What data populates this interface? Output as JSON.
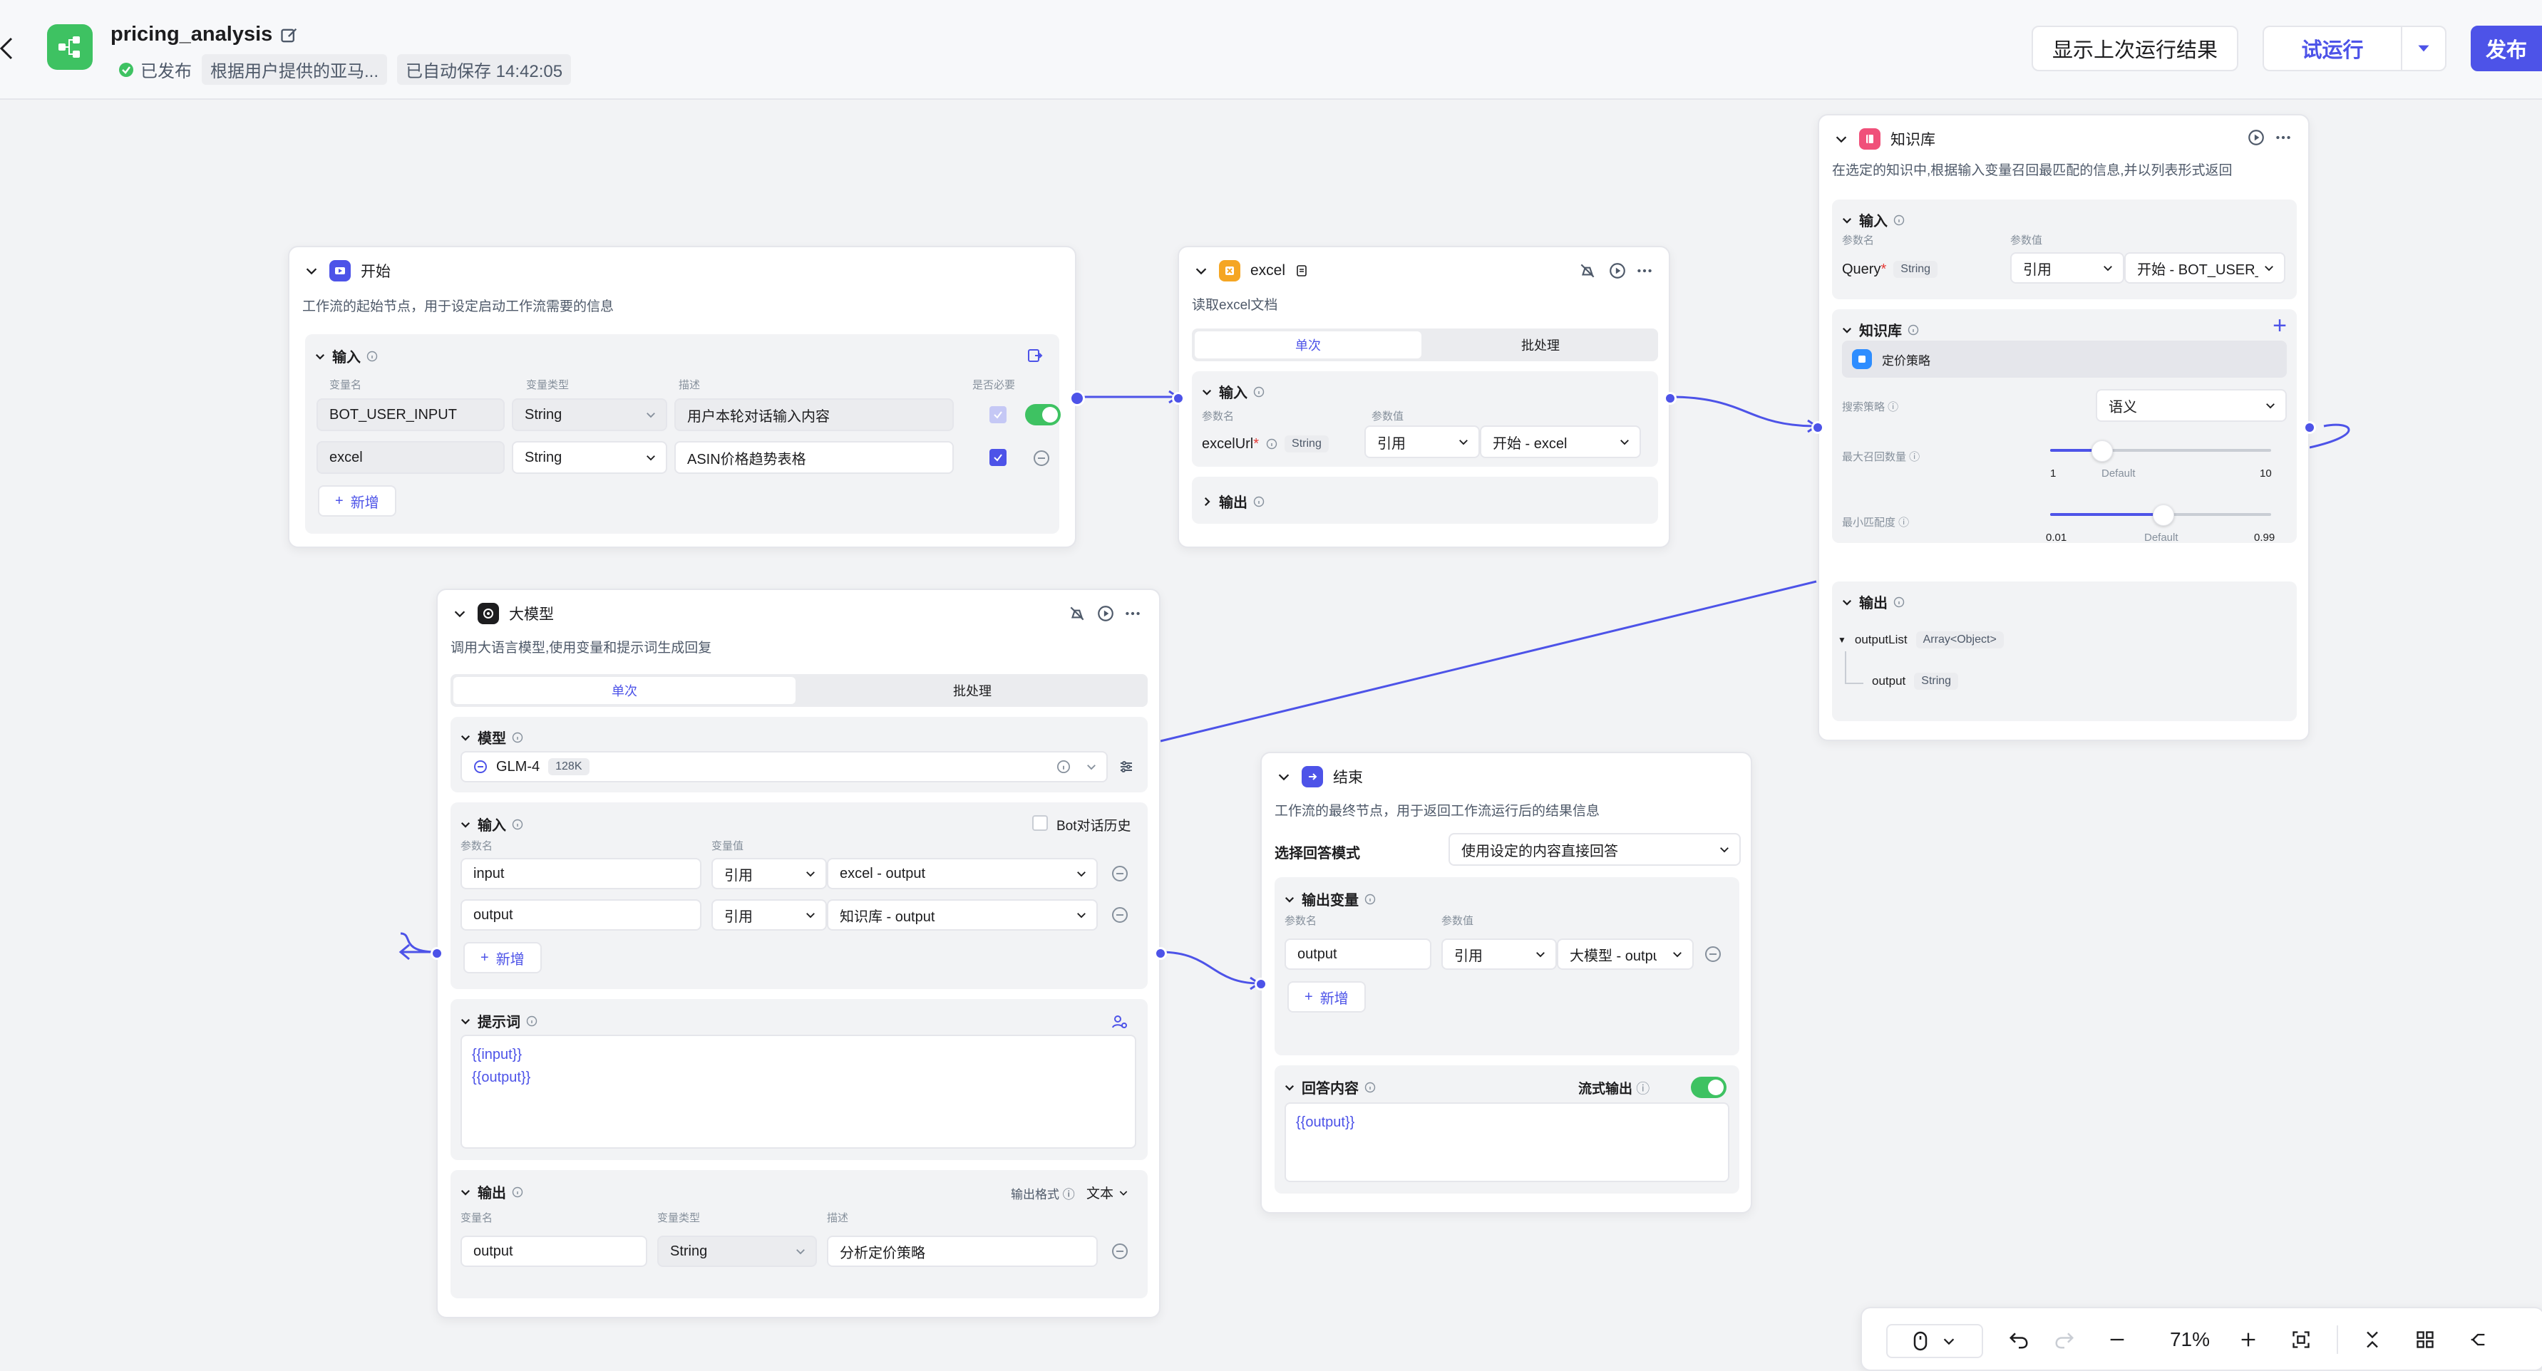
{
  "header": {
    "app_name": "pricing_analysis",
    "published_label": "已发布",
    "description_short": "根据用户提供的亚马...",
    "autosave": "已自动保存 14:42:05",
    "show_last_run_label": "显示上次运行结果",
    "test_run_label": "试运行",
    "publish_label": "发布"
  },
  "colors": {
    "accent": "#4d53e8",
    "green": "#3ec262",
    "canvas": "#f2f3f5"
  },
  "start_node": {
    "title": "开始",
    "desc": "工作流的起始节点，用于设定启动工作流需要的信息",
    "input_title": "输入",
    "col_name": "变量名",
    "col_type": "变量类型",
    "col_desc": "描述",
    "col_required": "是否必要",
    "rows": [
      {
        "name": "BOT_USER_INPUT",
        "type": "String",
        "desc": "用户本轮对话输入内容"
      },
      {
        "name": "excel",
        "type": "String",
        "desc": "ASIN价格趋势表格"
      }
    ],
    "add_label": "新增"
  },
  "excel_node": {
    "title": "excel",
    "desc": "读取excel文档",
    "tab_single": "单次",
    "tab_batch": "批处理",
    "input_title": "输入",
    "col_param": "参数名",
    "col_value": "参数值",
    "param_name": "excelUrl",
    "param_type": "String",
    "ref_label": "引用",
    "ref_value": "开始 - excel",
    "output_title": "输出"
  },
  "kb_node": {
    "title": "知识库",
    "desc": "在选定的知识中,根据输入变量召回最匹配的信息,并以列表形式返回",
    "input_title": "输入",
    "col_param": "参数名",
    "col_value": "参数值",
    "query_name": "Query",
    "query_type": "String",
    "ref_label": "引用",
    "ref_value": "开始 - BOT_USER_INPUT",
    "kb_title": "知识库",
    "kb_item": "定价策略",
    "search_strategy_label": "搜索策略",
    "search_strategy_value": "语义",
    "max_recall_label": "最大召回数量",
    "max_recall_min": "1",
    "max_recall_default": "Default",
    "max_recall_max": "10",
    "max_recall_value": 3,
    "min_match_label": "最小匹配度",
    "min_match_min": "0.01",
    "min_match_default": "Default",
    "min_match_max": "0.99",
    "min_match_value": 0.5,
    "output_title": "输出",
    "out_list_name": "outputList",
    "out_list_type": "Array<Object>",
    "out_item_name": "output",
    "out_item_type": "String"
  },
  "llm_node": {
    "title": "大模型",
    "desc": "调用大语言模型,使用变量和提示词生成回复",
    "tab_single": "单次",
    "tab_batch": "批处理",
    "model_title": "模型",
    "model_name": "GLM-4",
    "model_ctx": "128K",
    "input_title": "输入",
    "bot_history_label": "Bot对话历史",
    "col_param": "参数名",
    "col_var": "变量值",
    "inputs": [
      {
        "name": "input",
        "ref": "引用",
        "value": "excel - output"
      },
      {
        "name": "output",
        "ref": "引用",
        "value": "知识库 - output"
      }
    ],
    "add_label": "新增",
    "prompt_title": "提示词",
    "prompt_line1": "{{input}}",
    "prompt_line2": "{{output}}",
    "output_title": "输出",
    "output_format_label": "输出格式",
    "output_format_value": "文本",
    "col_name": "变量名",
    "col_type": "变量类型",
    "col_desc": "描述",
    "out_name": "output",
    "out_type": "String",
    "out_desc": "分析定价策略"
  },
  "end_node": {
    "title": "结束",
    "desc": "工作流的最终节点，用于返回工作流运行后的结果信息",
    "mode_label": "选择回答模式",
    "mode_value": "使用设定的内容直接回答",
    "out_var_title": "输出变量",
    "col_param": "参数名",
    "col_value": "参数值",
    "out_name": "output",
    "ref_label": "引用",
    "ref_value": "大模型 - output",
    "add_label": "新增",
    "answer_title": "回答内容",
    "stream_label": "流式输出",
    "answer_text": "{{output}}"
  },
  "toolbar": {
    "zoom": "71%"
  }
}
